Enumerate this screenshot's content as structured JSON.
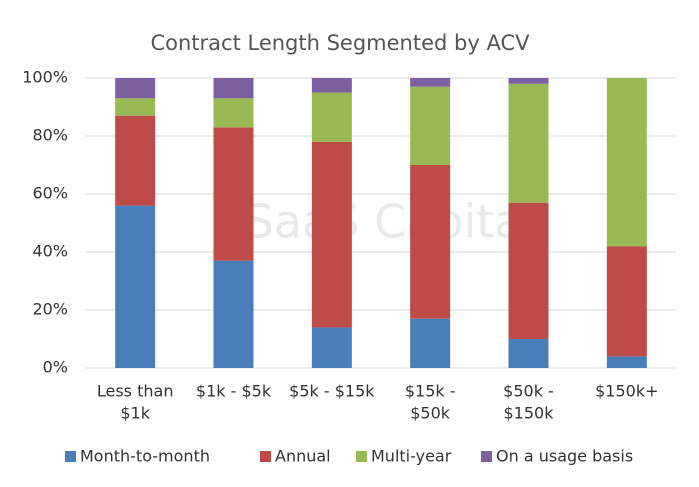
{
  "chart_data": {
    "type": "stacked-bar",
    "title": "Contract Length Segmented by ACV",
    "watermark": "SaaS Capital",
    "categories": [
      [
        "Less than",
        "$1k"
      ],
      [
        "$1k - $5k"
      ],
      [
        "$5k - $15k"
      ],
      [
        "$15k -",
        "$50k"
      ],
      [
        "$50k -",
        "$150k"
      ],
      [
        "$150k+"
      ]
    ],
    "series": [
      {
        "name": "Month-to-month",
        "color": "#4a7ebb",
        "values": [
          56,
          37,
          14,
          17,
          10,
          4
        ]
      },
      {
        "name": "Annual",
        "color": "#be4b48",
        "values": [
          31,
          46,
          64,
          53,
          47,
          38
        ]
      },
      {
        "name": "Multi-year",
        "color": "#98b954",
        "values": [
          6,
          10,
          17,
          27,
          41,
          58
        ]
      },
      {
        "name": "On a usage basis",
        "color": "#7d60a0",
        "values": [
          7,
          7,
          5,
          3,
          2,
          0
        ]
      }
    ],
    "ylim": [
      0,
      100
    ],
    "yticks": [
      {
        "value": 0,
        "label": "0%"
      },
      {
        "value": 20,
        "label": "20%"
      },
      {
        "value": 40,
        "label": "40%"
      },
      {
        "value": 60,
        "label": "60%"
      },
      {
        "value": 80,
        "label": "80%"
      },
      {
        "value": 100,
        "label": "100%"
      }
    ],
    "grid": true
  }
}
